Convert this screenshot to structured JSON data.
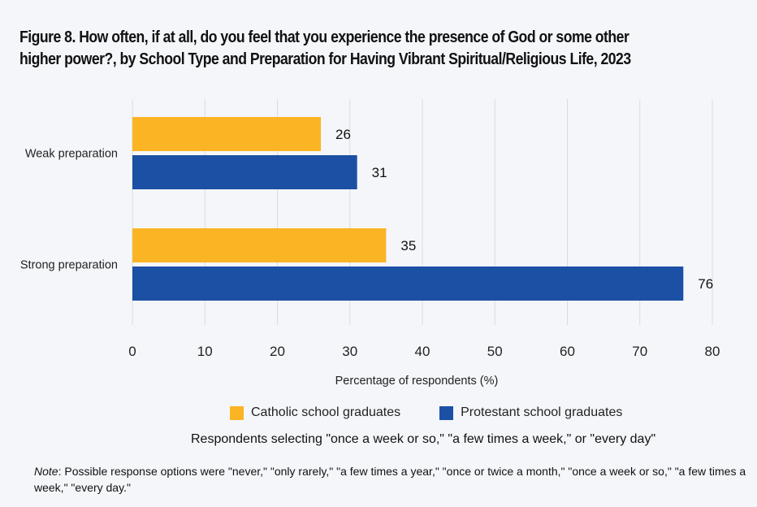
{
  "title_line1": "Figure 8. How often, if at all, do you feel that you experience the presence of God or some other",
  "title_line2": "higher power?, by School Type and Preparation for Having Vibrant Spiritual/Religious Life, 2023",
  "legend": {
    "catholic": "Catholic school graduates",
    "protestant": "Protestant school graduates"
  },
  "subnote": "Respondents selecting \"once a week or so,\" \"a few times a week,\" or \"every day\"",
  "note": {
    "label": "Note",
    "text": ": Possible response options were \"never,\" \"only rarely,\" \"a few times a year,\" \"once or twice a month,\" \"once a week or so,\" \"a few times a week,\" \"every day.\""
  },
  "chart_data": {
    "type": "bar",
    "orientation": "horizontal",
    "categories": [
      "Weak preparation",
      "Strong preparation"
    ],
    "series": [
      {
        "name": "Catholic school graduates",
        "color": "#fbb424",
        "values": [
          26,
          35
        ]
      },
      {
        "name": "Protestant school graduates",
        "color": "#1c50a4",
        "values": [
          31,
          76
        ]
      }
    ],
    "xlabel": "Percentage of respondents (%)",
    "xlim": [
      0,
      80
    ],
    "xticks": [
      0,
      10,
      20,
      30,
      40,
      50,
      60,
      70,
      80
    ],
    "grid": true,
    "legend_position": "bottom",
    "data_labels": true
  }
}
